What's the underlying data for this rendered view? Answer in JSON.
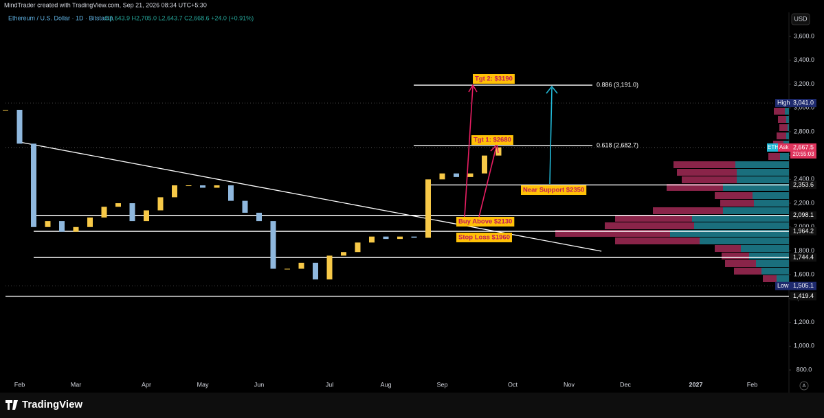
{
  "chart_data": {
    "type": "candlestick",
    "header": "MindTrader created with TradingView.com, Sep 21, 2026 08:34 UTC+5:30",
    "title": "Ethereum / U.S. Dollar · 1D · Bitstamp",
    "ohlc_text": "O2,643.9 H2,705.0 L2,643.7 C2,668.6 +24.0 (+0.91%)",
    "currency": "USD",
    "brand": "TradingView",
    "categories": [
      null,
      "Feb",
      null,
      null,
      null,
      "Mar",
      null,
      null,
      null,
      null,
      "Apr",
      null,
      null,
      null,
      "May",
      null,
      null,
      null,
      "Jun",
      null,
      null,
      null,
      null,
      "Jul",
      null,
      null,
      null,
      "Aug",
      null,
      null,
      null,
      "Sep",
      null,
      null,
      null,
      null,
      "Oct",
      null,
      null,
      null,
      "Nov",
      null,
      null,
      null,
      "Dec",
      null,
      null,
      null,
      null,
      "2027",
      null,
      null,
      null,
      "Feb",
      null,
      null,
      null
    ],
    "values": [
      2984,
      2700,
      2000,
      2050,
      1960,
      2000,
      2080,
      2170,
      2200,
      2050,
      2140,
      2250,
      2350,
      2350,
      2330,
      2350,
      2220,
      2120,
      2050,
      1650,
      1650,
      1700,
      1560,
      1760,
      1790,
      1870,
      1920,
      1900,
      1920,
      1910,
      2400,
      2450,
      2420,
      2450,
      2600,
      2668.6,
      null,
      null,
      null,
      null,
      null,
      null,
      null,
      null,
      null,
      null,
      null,
      null,
      null,
      null,
      null,
      null,
      null,
      null,
      null,
      null,
      null
    ],
    "up_color": "#f7c948",
    "down_color": "#8fb8de",
    "ylim": [
      737,
      3802
    ],
    "yticks": [
      {
        "value": 800,
        "label": "800.0"
      },
      {
        "value": 1000,
        "label": "1,000.0"
      },
      {
        "value": 1200,
        "label": "1,200.0"
      },
      {
        "value": 1400,
        "label": "1,400.0"
      },
      {
        "value": 1600,
        "label": "1,600.0"
      },
      {
        "value": 1800,
        "label": "1,800.0"
      },
      {
        "value": 2000,
        "label": "2,000.0"
      },
      {
        "value": 2200,
        "label": "2,200.0"
      },
      {
        "value": 2400,
        "label": "2,400.0"
      },
      {
        "value": 2600,
        "label": "2,600.0"
      },
      {
        "value": 2800,
        "label": "2,800.0"
      },
      {
        "value": 3000,
        "label": "3,000.0"
      },
      {
        "value": 3200,
        "label": "3,200.0"
      },
      {
        "value": 3400,
        "label": "3,400.0"
      },
      {
        "value": 3600,
        "label": "3,600.0"
      }
    ],
    "fib_levels": [
      {
        "value": 3191,
        "label": "0.886 (3,191.0)"
      },
      {
        "value": 2682.7,
        "label": "0.618 (2,682.7)"
      }
    ],
    "levels": [
      {
        "value": 2353.6,
        "label": "2,353.6"
      },
      {
        "value": 2098.1,
        "label": "2,098.1"
      },
      {
        "value": 1964.2,
        "label": "1,964.2"
      },
      {
        "value": 1744.4,
        "label": "1,744.4"
      },
      {
        "value": 1419.4,
        "label": "1,419.4"
      }
    ],
    "trendline": [
      2713,
      1797
    ],
    "high": {
      "text": "High",
      "value": 3041,
      "label": "3,041.0"
    },
    "low": {
      "text": "Low",
      "value": 1505.1,
      "label": "1,505.1"
    },
    "ask": {
      "symbol": "ETH",
      "side": "Ask",
      "value": 2667.5,
      "label": "2,667.5",
      "countdown": "20:55:03"
    },
    "annotations": [
      "Tgt 2: $3190",
      "Tgt 1: $2680",
      "Near Support $2350",
      "Buy Above $2130",
      "Stop Loss $1960"
    ]
  }
}
